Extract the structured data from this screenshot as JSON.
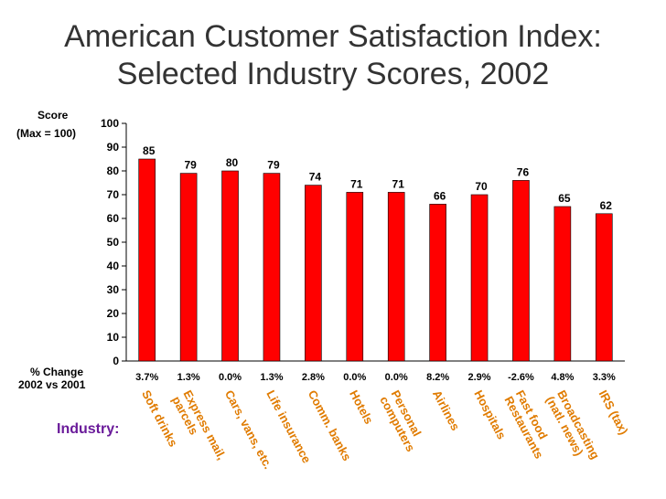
{
  "title_line1": "American Customer Satisfaction Index:",
  "title_line2": "Selected Industry Scores, 2002",
  "labels": {
    "score": "Score",
    "max": "(Max = 100)",
    "change1": "% Change",
    "change2": "2002 vs 2001",
    "industry": "Industry:"
  },
  "colors": {
    "bar": "#ff0000",
    "category_text": "#e07b00",
    "industry_label": "#6a1b9a",
    "title": "#333333"
  },
  "chart_data": {
    "type": "bar",
    "title": "American Customer Satisfaction Index: Selected Industry Scores, 2002",
    "ylabel": "Score (Max = 100)",
    "xlabel": "Industry:",
    "ylim": [
      0,
      100
    ],
    "yticks": [
      0,
      10,
      20,
      30,
      40,
      50,
      60,
      70,
      80,
      90,
      100
    ],
    "grid": false,
    "categories": [
      [
        "Soft drinks"
      ],
      [
        "Express mail,",
        "parcels"
      ],
      [
        "Cars, vans, etc."
      ],
      [
        "Life insurance"
      ],
      [
        "Comm. banks"
      ],
      [
        "Hotels"
      ],
      [
        "Personal",
        "computers"
      ],
      [
        "Airlines"
      ],
      [
        "Hospitals"
      ],
      [
        "Fast food",
        "Restaurants"
      ],
      [
        "Broadcasting",
        "(natl. news)"
      ],
      [
        "IRS (tax)"
      ]
    ],
    "values": [
      85,
      79,
      80,
      79,
      74,
      71,
      71,
      66,
      70,
      76,
      65,
      62
    ],
    "pct_change": [
      "3.7%",
      "1.3%",
      "0.0%",
      "1.3%",
      "2.8%",
      "0.0%",
      "0.0%",
      "8.2%",
      "2.9%",
      "-2.6%",
      "4.8%",
      "3.3%"
    ]
  }
}
